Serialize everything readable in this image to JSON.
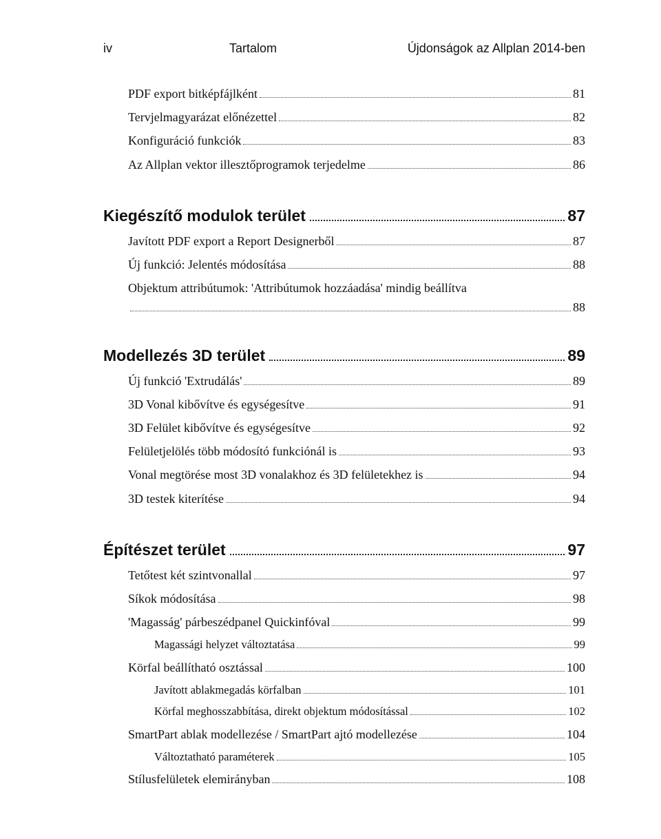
{
  "header": {
    "page_roman": "iv",
    "center": "Tartalom",
    "right": "Újdonságok az Allplan 2014-ben"
  },
  "intro_items": [
    {
      "label": "PDF export bitképfájlként",
      "page": "81",
      "indent": 0
    },
    {
      "label": "Tervjelmagyarázat előnézettel",
      "page": "82",
      "indent": 0
    },
    {
      "label": "Konfiguráció funkciók",
      "page": "83",
      "indent": 0
    },
    {
      "label": "Az Allplan vektor illesztőprogramok terjedelme",
      "page": "86",
      "indent": 0
    }
  ],
  "sections": [
    {
      "title": "Kiegészítő modulok terület",
      "page": "87",
      "items": [
        {
          "label": "Javított PDF export a Report Designerből",
          "page": "87",
          "indent": 0
        },
        {
          "label": "Új funkció: Jelentés módosítása",
          "page": "88",
          "indent": 0
        },
        {
          "label": "Objektum attribútumok: 'Attribútumok hozzáadása' mindig beállítva",
          "labelCont": "",
          "page": "88",
          "indent": 0,
          "twoLine": true
        }
      ]
    },
    {
      "title": "Modellezés 3D terület",
      "page": "89",
      "items": [
        {
          "label": "Új funkció 'Extrudálás'",
          "page": "89",
          "indent": 0
        },
        {
          "label": "3D Vonal kibővítve és egységesítve",
          "page": "91",
          "indent": 0
        },
        {
          "label": "3D Felület kibővítve és egységesítve",
          "page": "92",
          "indent": 0
        },
        {
          "label": "Felületjelölés több módosító funkciónál is",
          "page": "93",
          "indent": 0
        },
        {
          "label": "Vonal megtörése most 3D vonalakhoz és 3D felületekhez is",
          "page": "94",
          "indent": 0
        },
        {
          "label": "3D testek kiterítése",
          "page": "94",
          "indent": 0
        }
      ]
    },
    {
      "title": "Építészet terület",
      "page": "97",
      "items": [
        {
          "label": "Tetőtest két szintvonallal",
          "page": "97",
          "indent": 0
        },
        {
          "label": "Síkok módosítása",
          "page": "98",
          "indent": 0
        },
        {
          "label": "'Magasság' párbeszédpanel Quickinfóval",
          "page": "99",
          "indent": 0
        },
        {
          "label": "Magassági helyzet változtatása",
          "page": "99",
          "indent": 1,
          "sub": true
        },
        {
          "label": "Körfal beállítható osztással",
          "page": "100",
          "indent": 0
        },
        {
          "label": "Javított ablakmegadás körfalban",
          "page": "101",
          "indent": 1,
          "sub": true
        },
        {
          "label": "Körfal meghosszabbítása, direkt objektum módosítással",
          "page": "102",
          "indent": 1,
          "sub": true
        },
        {
          "label": "SmartPart ablak modellezése / SmartPart ajtó modellezése",
          "page": "104",
          "indent": 0
        },
        {
          "label": "Változtatható paraméterek",
          "page": "105",
          "indent": 1,
          "sub": true
        },
        {
          "label": "Stílusfelületek elemirányban",
          "page": "108",
          "indent": 0
        }
      ]
    }
  ]
}
